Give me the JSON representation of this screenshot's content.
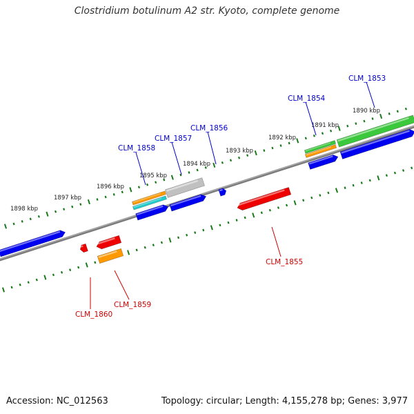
{
  "title": "Clostridium botulinum A2 str. Kyoto, complete genome",
  "footer": {
    "accession": "Accession: NC_012563",
    "topology": "Topology: circular; Length: 4,155,278 bp; Genes: 3,977"
  },
  "colors": {
    "backbone": "#8c8c8c",
    "tick": "#1a7a1a",
    "gene_blue": "#0000f0",
    "gene_red": "#ee0000",
    "gene_green": "#3cc83c",
    "gene_orange": "#ff9900",
    "gene_cyan": "#22cccc",
    "gene_gray": "#c0c0c0",
    "label_forward": "#0000cc",
    "label_reverse": "#cc0000"
  },
  "scale_labels": [
    {
      "text": "1890 kbp"
    },
    {
      "text": "1891 kbp"
    },
    {
      "text": "1892 kbp"
    },
    {
      "text": "1893 kbp"
    },
    {
      "text": "1894 kbp"
    },
    {
      "text": "1895 kbp"
    },
    {
      "text": "1896 kbp"
    },
    {
      "text": "1897 kbp"
    },
    {
      "text": "1898 kbp"
    }
  ],
  "gene_labels": [
    {
      "text": "CLM_1853",
      "strand": "forward"
    },
    {
      "text": "CLM_1854",
      "strand": "forward"
    },
    {
      "text": "CLM_1856",
      "strand": "forward"
    },
    {
      "text": "CLM_1857",
      "strand": "forward"
    },
    {
      "text": "CLM_1858",
      "strand": "forward"
    },
    {
      "text": "CLM_1855",
      "strand": "reverse"
    },
    {
      "text": "CLM_1859",
      "strand": "reverse"
    },
    {
      "text": "CLM_1860",
      "strand": "reverse"
    }
  ]
}
